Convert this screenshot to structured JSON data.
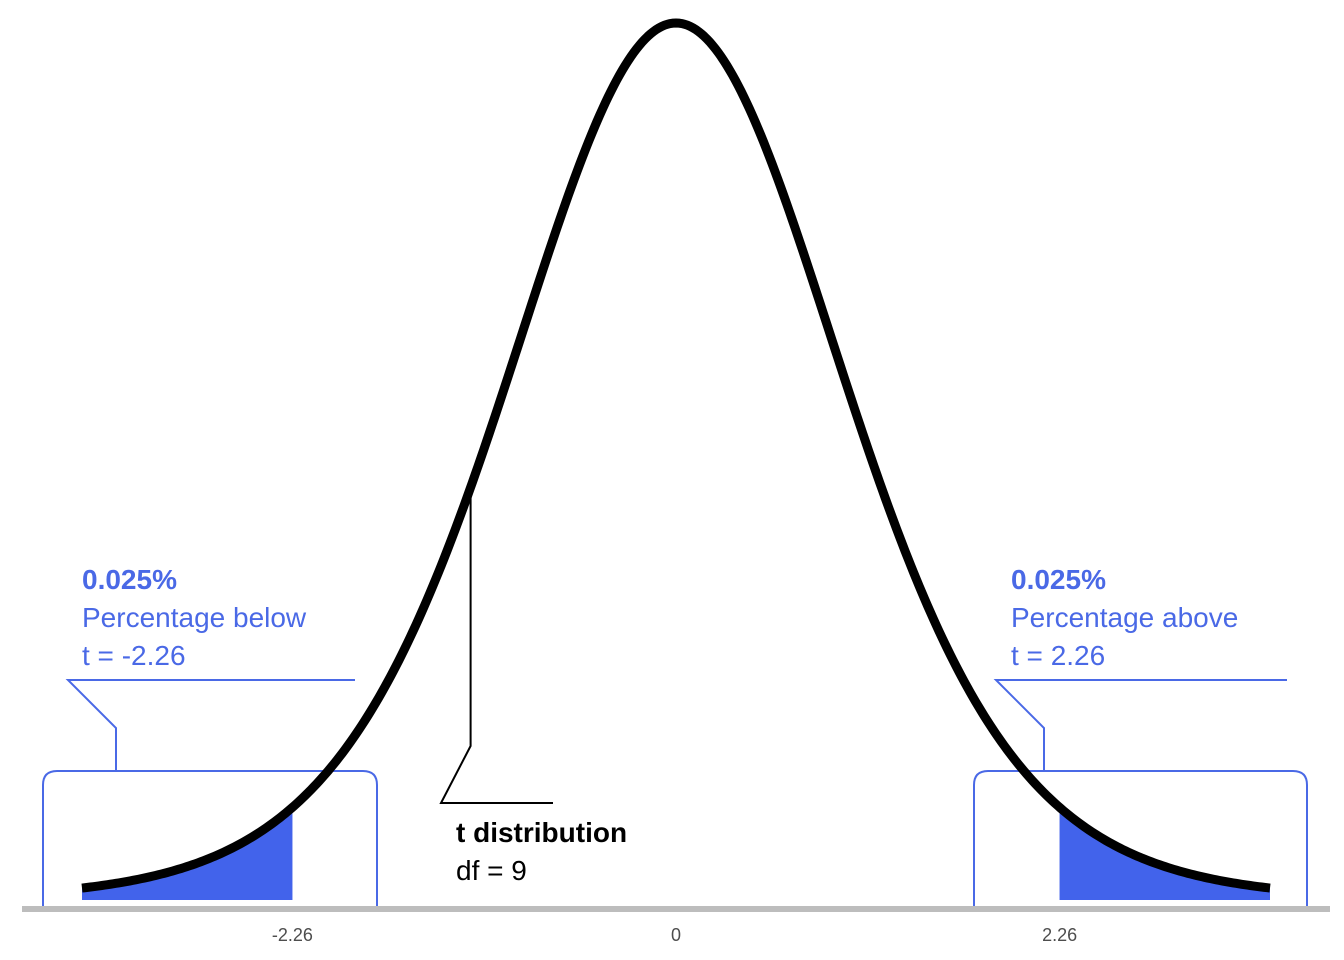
{
  "chart_data": {
    "type": "area",
    "distribution": "t",
    "df": 9,
    "xlim": [
      -3.5,
      3.5
    ],
    "critical_values": [
      -2.26,
      2.26
    ],
    "x_ticks": [
      {
        "value": -2.26,
        "label": "-2.26"
      },
      {
        "value": 0,
        "label": "0"
      },
      {
        "value": 2.26,
        "label": "2.26"
      }
    ],
    "shaded_regions": [
      {
        "from": -3.5,
        "to": -2.26
      },
      {
        "from": 2.26,
        "to": 3.5
      }
    ],
    "annotations": {
      "distribution": {
        "title": "t distribution",
        "detail": "df = 9"
      },
      "left": {
        "value": "0.025%",
        "label": "Percentage below",
        "detail": "t = -2.26"
      },
      "right": {
        "value": "0.025%",
        "label": "Percentage above",
        "detail": "t = 2.26"
      }
    },
    "colors": {
      "curve": "#000000",
      "shade": "#4263eb",
      "annotation": "#4a69e6",
      "axis": "#bdbdbd",
      "tick_text": "#4d4d4d"
    },
    "grid": false,
    "legend": "none"
  }
}
